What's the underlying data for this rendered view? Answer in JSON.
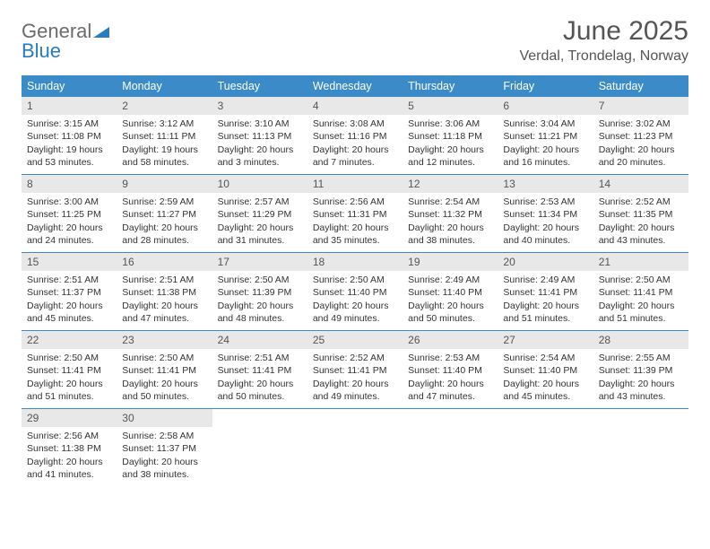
{
  "logo": {
    "word1": "General",
    "word2": "Blue"
  },
  "title": "June 2025",
  "location": "Verdal, Trondelag, Norway",
  "colors": {
    "header_bar": "#3b8bc9",
    "daynum_bg": "#e8e8e8",
    "week_divider": "#3b8bc9",
    "logo_gray": "#6b6b6b",
    "logo_blue": "#2b7bbf",
    "text": "#333333",
    "title_color": "#555555"
  },
  "weekdays": [
    "Sunday",
    "Monday",
    "Tuesday",
    "Wednesday",
    "Thursday",
    "Friday",
    "Saturday"
  ],
  "weeks": [
    [
      {
        "n": "1",
        "sr": "3:15 AM",
        "ss": "11:08 PM",
        "dl": "19 hours and 53 minutes."
      },
      {
        "n": "2",
        "sr": "3:12 AM",
        "ss": "11:11 PM",
        "dl": "19 hours and 58 minutes."
      },
      {
        "n": "3",
        "sr": "3:10 AM",
        "ss": "11:13 PM",
        "dl": "20 hours and 3 minutes."
      },
      {
        "n": "4",
        "sr": "3:08 AM",
        "ss": "11:16 PM",
        "dl": "20 hours and 7 minutes."
      },
      {
        "n": "5",
        "sr": "3:06 AM",
        "ss": "11:18 PM",
        "dl": "20 hours and 12 minutes."
      },
      {
        "n": "6",
        "sr": "3:04 AM",
        "ss": "11:21 PM",
        "dl": "20 hours and 16 minutes."
      },
      {
        "n": "7",
        "sr": "3:02 AM",
        "ss": "11:23 PM",
        "dl": "20 hours and 20 minutes."
      }
    ],
    [
      {
        "n": "8",
        "sr": "3:00 AM",
        "ss": "11:25 PM",
        "dl": "20 hours and 24 minutes."
      },
      {
        "n": "9",
        "sr": "2:59 AM",
        "ss": "11:27 PM",
        "dl": "20 hours and 28 minutes."
      },
      {
        "n": "10",
        "sr": "2:57 AM",
        "ss": "11:29 PM",
        "dl": "20 hours and 31 minutes."
      },
      {
        "n": "11",
        "sr": "2:56 AM",
        "ss": "11:31 PM",
        "dl": "20 hours and 35 minutes."
      },
      {
        "n": "12",
        "sr": "2:54 AM",
        "ss": "11:32 PM",
        "dl": "20 hours and 38 minutes."
      },
      {
        "n": "13",
        "sr": "2:53 AM",
        "ss": "11:34 PM",
        "dl": "20 hours and 40 minutes."
      },
      {
        "n": "14",
        "sr": "2:52 AM",
        "ss": "11:35 PM",
        "dl": "20 hours and 43 minutes."
      }
    ],
    [
      {
        "n": "15",
        "sr": "2:51 AM",
        "ss": "11:37 PM",
        "dl": "20 hours and 45 minutes."
      },
      {
        "n": "16",
        "sr": "2:51 AM",
        "ss": "11:38 PM",
        "dl": "20 hours and 47 minutes."
      },
      {
        "n": "17",
        "sr": "2:50 AM",
        "ss": "11:39 PM",
        "dl": "20 hours and 48 minutes."
      },
      {
        "n": "18",
        "sr": "2:50 AM",
        "ss": "11:40 PM",
        "dl": "20 hours and 49 minutes."
      },
      {
        "n": "19",
        "sr": "2:49 AM",
        "ss": "11:40 PM",
        "dl": "20 hours and 50 minutes."
      },
      {
        "n": "20",
        "sr": "2:49 AM",
        "ss": "11:41 PM",
        "dl": "20 hours and 51 minutes."
      },
      {
        "n": "21",
        "sr": "2:50 AM",
        "ss": "11:41 PM",
        "dl": "20 hours and 51 minutes."
      }
    ],
    [
      {
        "n": "22",
        "sr": "2:50 AM",
        "ss": "11:41 PM",
        "dl": "20 hours and 51 minutes."
      },
      {
        "n": "23",
        "sr": "2:50 AM",
        "ss": "11:41 PM",
        "dl": "20 hours and 50 minutes."
      },
      {
        "n": "24",
        "sr": "2:51 AM",
        "ss": "11:41 PM",
        "dl": "20 hours and 50 minutes."
      },
      {
        "n": "25",
        "sr": "2:52 AM",
        "ss": "11:41 PM",
        "dl": "20 hours and 49 minutes."
      },
      {
        "n": "26",
        "sr": "2:53 AM",
        "ss": "11:40 PM",
        "dl": "20 hours and 47 minutes."
      },
      {
        "n": "27",
        "sr": "2:54 AM",
        "ss": "11:40 PM",
        "dl": "20 hours and 45 minutes."
      },
      {
        "n": "28",
        "sr": "2:55 AM",
        "ss": "11:39 PM",
        "dl": "20 hours and 43 minutes."
      }
    ],
    [
      {
        "n": "29",
        "sr": "2:56 AM",
        "ss": "11:38 PM",
        "dl": "20 hours and 41 minutes."
      },
      {
        "n": "30",
        "sr": "2:58 AM",
        "ss": "11:37 PM",
        "dl": "20 hours and 38 minutes."
      },
      {
        "empty": true
      },
      {
        "empty": true
      },
      {
        "empty": true
      },
      {
        "empty": true
      },
      {
        "empty": true
      }
    ]
  ],
  "labels": {
    "sunrise": "Sunrise: ",
    "sunset": "Sunset: ",
    "daylight": "Daylight: "
  }
}
